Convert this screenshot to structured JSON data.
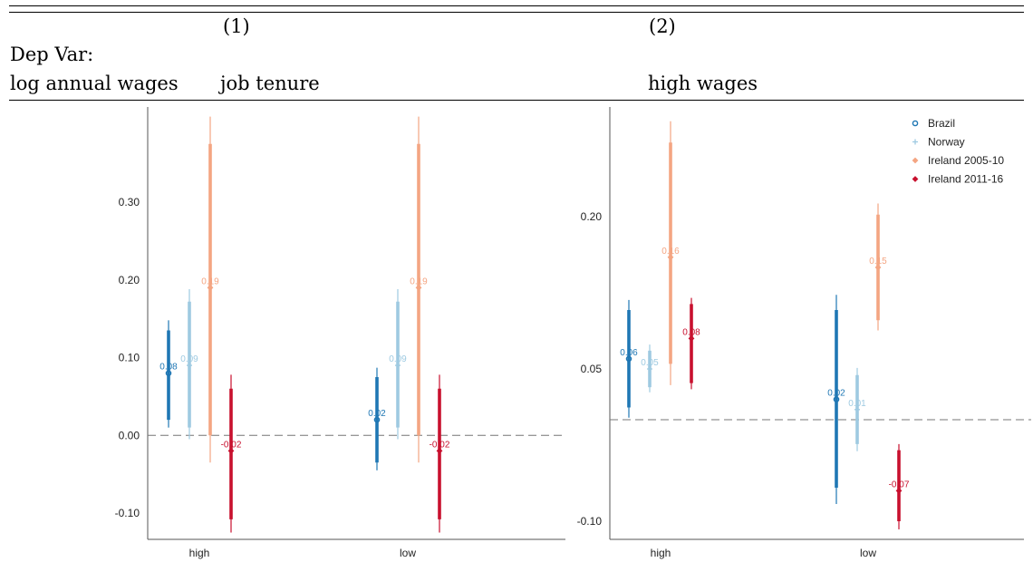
{
  "header": {
    "col1_num": "(1)",
    "col2_num": "(2)",
    "dep_var_label": "Dep Var:",
    "row_label": "log annual wages",
    "col1_label": "job tenure",
    "col2_label": "high wages"
  },
  "legend": [
    {
      "name": "Brazil",
      "marker": "circle",
      "color": "#1f77b4"
    },
    {
      "name": "Norway",
      "marker": "plus",
      "color": "#9ecae1"
    },
    {
      "name": "Ireland 2005-10",
      "marker": "diamond",
      "color": "#f4a582"
    },
    {
      "name": "Ireland 2011-16",
      "marker": "diamond",
      "color": "#c8102e"
    }
  ],
  "chart_data": [
    {
      "type": "scatter",
      "title": "job tenure",
      "categories": [
        "high",
        "low"
      ],
      "ylim": [
        -0.135,
        0.42
      ],
      "yticks": [
        {
          "v": 0.3,
          "label": "0.30"
        },
        {
          "v": 0.2,
          "label": "0.20"
        },
        {
          "v": 0.1,
          "label": "0.10"
        },
        {
          "v": 0.0,
          "label": "0.00"
        },
        {
          "v": -0.1,
          "label": "-0.10"
        }
      ],
      "zero_line": 0.0,
      "series": [
        {
          "name": "Brazil",
          "color": "#1f77b4",
          "marker": "circle",
          "points": [
            {
              "cat": "high",
              "y": 0.08,
              "label": "0.08",
              "ci90": [
                0.02,
                0.135
              ],
              "ci95": [
                0.01,
                0.148
              ]
            },
            {
              "cat": "low",
              "y": 0.02,
              "label": "0.02",
              "ci90": [
                -0.035,
                0.075
              ],
              "ci95": [
                -0.045,
                0.087
              ]
            }
          ]
        },
        {
          "name": "Norway",
          "color": "#9ecae1",
          "marker": "plus",
          "points": [
            {
              "cat": "high",
              "y": 0.09,
              "label": "0.09",
              "ci90": [
                0.01,
                0.172
              ],
              "ci95": [
                -0.005,
                0.188
              ]
            },
            {
              "cat": "low",
              "y": 0.09,
              "label": "0.09",
              "ci90": [
                0.01,
                0.172
              ],
              "ci95": [
                -0.005,
                0.188
              ]
            }
          ]
        },
        {
          "name": "Ireland 2005-10",
          "color": "#f4a582",
          "marker": "diamond",
          "points": [
            {
              "cat": "high",
              "y": 0.19,
              "label": "0.19",
              "ci90": [
                0.0,
                0.375
              ],
              "ci95": [
                -0.035,
                0.41
              ]
            },
            {
              "cat": "low",
              "y": 0.19,
              "label": "0.19",
              "ci90": [
                0.0,
                0.375
              ],
              "ci95": [
                -0.035,
                0.41
              ]
            }
          ]
        },
        {
          "name": "Ireland 2011-16",
          "color": "#c8102e",
          "marker": "diamond",
          "points": [
            {
              "cat": "high",
              "y": -0.02,
              "label": "-0.02",
              "ci90": [
                -0.108,
                0.06
              ],
              "ci95": [
                -0.125,
                0.078
              ]
            },
            {
              "cat": "low",
              "y": -0.02,
              "label": "-0.02",
              "ci90": [
                -0.108,
                0.06
              ],
              "ci95": [
                -0.125,
                0.078
              ]
            }
          ]
        }
      ]
    },
    {
      "type": "scatter",
      "title": "high wages",
      "categories": [
        "high",
        "low"
      ],
      "ylim": [
        -0.12,
        0.315
      ],
      "yticks": [
        {
          "v": 0.2,
          "label": "0.20"
        },
        {
          "v": 0.05,
          "label": "0.05"
        },
        {
          "v": -0.1,
          "label": "-0.10"
        }
      ],
      "zero_line": 0.0,
      "series": [
        {
          "name": "Brazil",
          "color": "#1f77b4",
          "marker": "circle",
          "points": [
            {
              "cat": "high",
              "y": 0.06,
              "label": "0.06",
              "ci90": [
                0.012,
                0.108
              ],
              "ci95": [
                0.002,
                0.118
              ]
            },
            {
              "cat": "low",
              "y": 0.02,
              "label": "0.02",
              "ci90": [
                -0.067,
                0.108
              ],
              "ci95": [
                -0.083,
                0.123
              ]
            }
          ]
        },
        {
          "name": "Norway",
          "color": "#9ecae1",
          "marker": "plus",
          "points": [
            {
              "cat": "high",
              "y": 0.05,
              "label": "0.05",
              "ci90": [
                0.032,
                0.068
              ],
              "ci95": [
                0.027,
                0.074
              ]
            },
            {
              "cat": "low",
              "y": 0.01,
              "label": "0.01",
              "ci90": [
                -0.024,
                0.044
              ],
              "ci95": [
                -0.031,
                0.051
              ]
            }
          ]
        },
        {
          "name": "Ireland 2005-10",
          "color": "#f4a582",
          "marker": "diamond",
          "points": [
            {
              "cat": "high",
              "y": 0.16,
              "label": "0.16",
              "ci90": [
                0.055,
                0.273
              ],
              "ci95": [
                0.034,
                0.294
              ]
            },
            {
              "cat": "low",
              "y": 0.15,
              "label": "0.15",
              "ci90": [
                0.098,
                0.202
              ],
              "ci95": [
                0.088,
                0.213
              ]
            }
          ]
        },
        {
          "name": "Ireland 2011-16",
          "color": "#c8102e",
          "marker": "diamond",
          "points": [
            {
              "cat": "high",
              "y": 0.08,
              "label": "0.08",
              "ci90": [
                0.036,
                0.114
              ],
              "ci95": [
                0.03,
                0.12
              ]
            },
            {
              "cat": "low",
              "y": -0.07,
              "label": "-0.07",
              "ci90": [
                -0.1,
                -0.03
              ],
              "ci95": [
                -0.108,
                -0.024
              ]
            }
          ]
        }
      ]
    }
  ]
}
